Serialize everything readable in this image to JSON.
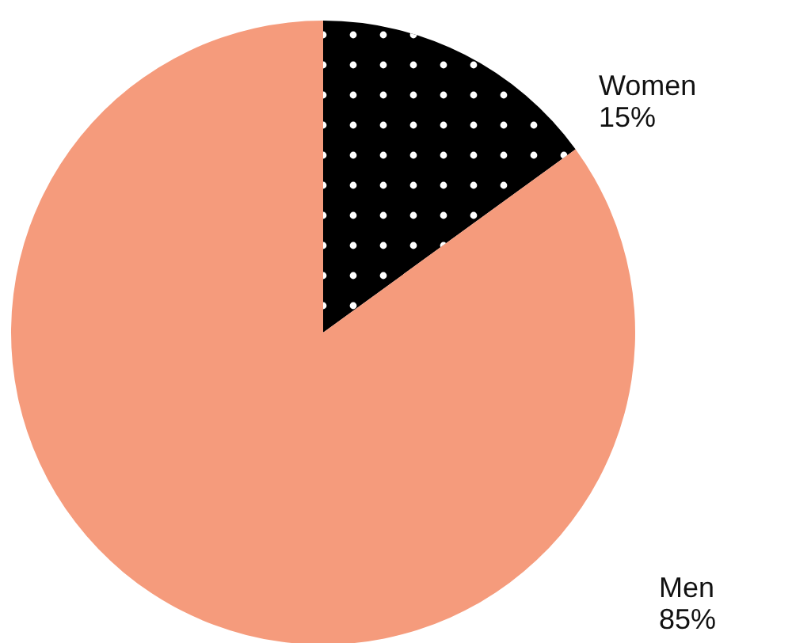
{
  "chart_data": {
    "type": "pie",
    "categories": [
      "Women",
      "Men"
    ],
    "values": [
      15,
      85
    ],
    "colors": [
      "#000000",
      "#f59b7c"
    ],
    "value_labels": [
      "15%",
      "85%"
    ]
  }
}
